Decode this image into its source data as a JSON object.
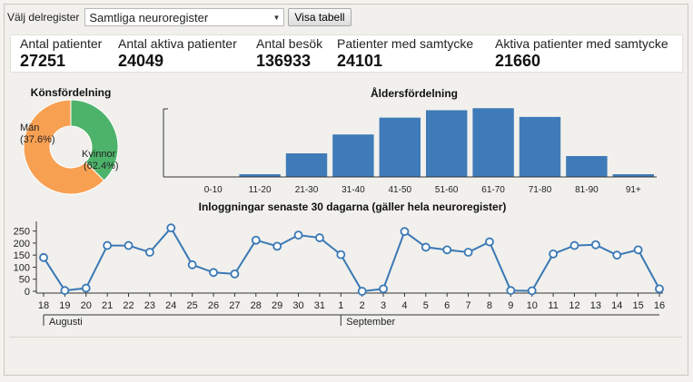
{
  "topbar": {
    "label": "Välj delregister",
    "select_value": "Samtliga neuroregister",
    "button": "Visa tabell"
  },
  "stats": [
    {
      "title": "Antal patienter",
      "value": "27251"
    },
    {
      "title": "Antal aktiva patienter",
      "value": "24049"
    },
    {
      "title": "Antal besök",
      "value": "136933"
    },
    {
      "title": "Patienter med samtycke",
      "value": "24101"
    },
    {
      "title": "Aktiva patienter med samtycke",
      "value": "21660"
    }
  ],
  "gender": {
    "title": "Könsfördelning",
    "slices": [
      {
        "name": "Män",
        "pct_label": "(37.6%)",
        "value": 37.6,
        "color": "#4db36b"
      },
      {
        "name": "Kvinnor",
        "pct_label": "(62.4%)",
        "value": 62.4,
        "color": "#f8a052"
      }
    ]
  },
  "age": {
    "title": "Åldersfördelning",
    "categories": [
      "0-10",
      "11-20",
      "21-30",
      "31-40",
      "41-50",
      "51-60",
      "61-70",
      "71-80",
      "81-90",
      "91+"
    ],
    "values": [
      0,
      4,
      35,
      63,
      88,
      99,
      102,
      89,
      31,
      4
    ],
    "color": "#3f7bb8"
  },
  "logins": {
    "title": "Inloggningar senaste 30 dagarna (gäller hela neuroregister)",
    "days": [
      "18",
      "19",
      "20",
      "21",
      "22",
      "23",
      "24",
      "25",
      "26",
      "27",
      "28",
      "29",
      "30",
      "31",
      "1",
      "2",
      "3",
      "4",
      "5",
      "6",
      "7",
      "8",
      "9",
      "10",
      "11",
      "12",
      "13",
      "14",
      "15",
      "16"
    ],
    "values": [
      140,
      3,
      13,
      190,
      190,
      162,
      263,
      110,
      78,
      72,
      212,
      187,
      233,
      222,
      152,
      0,
      10,
      248,
      183,
      172,
      162,
      205,
      3,
      2,
      155,
      190,
      193,
      150,
      172,
      10
    ],
    "y_ticks": [
      "0",
      "50",
      "100",
      "150",
      "200",
      "250"
    ],
    "ylim": [
      0,
      275
    ],
    "months": [
      {
        "label": "Augusti",
        "start_index": 0
      },
      {
        "label": "September",
        "start_index": 14
      }
    ],
    "color": "#3a78b5"
  }
}
